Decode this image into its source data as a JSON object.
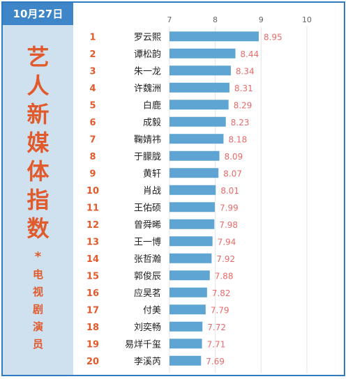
{
  "date": "10月27日",
  "title_chars": [
    "艺",
    "人",
    "新",
    "媒",
    "体",
    "指",
    "数"
  ],
  "separator": "*",
  "subtitle_chars": [
    "电",
    "视",
    "剧",
    "演",
    "员"
  ],
  "colors": {
    "bar": "#5ea5d4",
    "value": "#ea6a6a",
    "rank": "#e05a2c",
    "title": "#e05a2c",
    "badge_bg": "#3f86c8",
    "sidebar_bg": "#cfe0ef",
    "border": "#2e7bbf",
    "grid": "#e3e3e3"
  },
  "chart_data": {
    "type": "bar",
    "orientation": "horizontal",
    "title": "",
    "xlabel": "",
    "ylabel": "",
    "xlim": [
      7,
      10
    ],
    "x_ticks": [
      7,
      8,
      9,
      10
    ],
    "grid": true,
    "legend": "none",
    "ranks": [
      "1",
      "2",
      "3",
      "4",
      "5",
      "6",
      "7",
      "8",
      "9",
      "10",
      "11",
      "12",
      "13",
      "14",
      "15",
      "16",
      "17",
      "18",
      "19",
      "20"
    ],
    "categories": [
      "罗云熙",
      "谭松韵",
      "朱一龙",
      "许魏洲",
      "白鹿",
      "成毅",
      "鞠婧祎",
      "于朦胧",
      "黄轩",
      "肖战",
      "王佑硕",
      "曾舜晞",
      "王一博",
      "张哲瀚",
      "郭俊辰",
      "应昊茗",
      "付美",
      "刘奕畅",
      "易烊千玺",
      "李溪芮"
    ],
    "values": [
      8.95,
      8.44,
      8.34,
      8.31,
      8.29,
      8.23,
      8.18,
      8.09,
      8.07,
      8.01,
      7.99,
      7.98,
      7.94,
      7.92,
      7.88,
      7.82,
      7.79,
      7.72,
      7.71,
      7.69
    ],
    "value_labels": [
      "8.95",
      "8.44",
      "8.34",
      "8.31",
      "8.29",
      "8.23",
      "8.18",
      "8.09",
      "8.07",
      "8.01",
      "7.99",
      "7.98",
      "7.94",
      "7.92",
      "7.88",
      "7.82",
      "7.79",
      "7.72",
      "7.71",
      "7.69"
    ]
  }
}
